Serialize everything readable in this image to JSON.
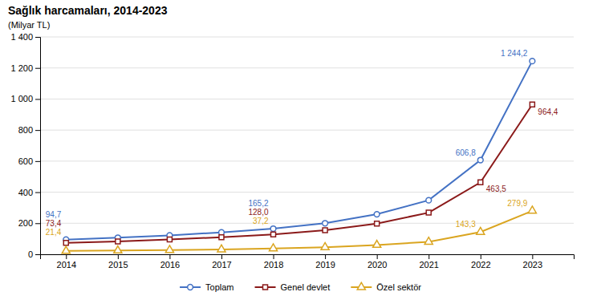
{
  "chart_data": {
    "type": "line",
    "title": "Sağlık harcamaları, 2014-2023",
    "ylabel": "(Milyar TL)",
    "x": [
      2014,
      2015,
      2016,
      2017,
      2018,
      2019,
      2020,
      2021,
      2022,
      2023
    ],
    "series": [
      {
        "name": "Toplam",
        "color": "#4472C4",
        "marker": "circle",
        "values": [
          94.7,
          107.0,
          122.0,
          141.0,
          165.2,
          200.0,
          258.0,
          348.0,
          606.8,
          1244.2
        ],
        "value_labels": [
          "94,7",
          null,
          null,
          null,
          "165,2",
          null,
          null,
          null,
          "606,8",
          "1 244,2"
        ]
      },
      {
        "name": "Genel devlet",
        "color": "#8B1A1A",
        "marker": "square",
        "values": [
          73.4,
          83.0,
          95.0,
          110.0,
          128.0,
          155.0,
          198.0,
          268.0,
          463.5,
          964.4
        ],
        "value_labels": [
          "73,4",
          null,
          null,
          null,
          "128,0",
          null,
          null,
          null,
          "463,5",
          "964,4"
        ]
      },
      {
        "name": "Özel sektör",
        "color": "#DAA520",
        "marker": "triangle",
        "values": [
          21.4,
          24.0,
          27.0,
          31.0,
          37.2,
          45.0,
          60.0,
          80.0,
          143.3,
          279.9
        ],
        "value_labels": [
          "21,4",
          null,
          null,
          null,
          "37,2",
          null,
          null,
          null,
          "143,3",
          "279,9"
        ]
      }
    ],
    "xlim": [
      2013.5,
      2023.8
    ],
    "xticks": [
      2014,
      2015,
      2016,
      2017,
      2018,
      2019,
      2020,
      2021,
      2022,
      2023
    ],
    "ylim": [
      0,
      1400
    ],
    "yticks": [
      0,
      200,
      400,
      600,
      800,
      {
        "value": 1000,
        "label": "1 000"
      },
      {
        "value": 1200,
        "label": "1 200"
      },
      {
        "value": 1400,
        "label": "1 400"
      }
    ],
    "grid": true,
    "legend": "bottom"
  }
}
